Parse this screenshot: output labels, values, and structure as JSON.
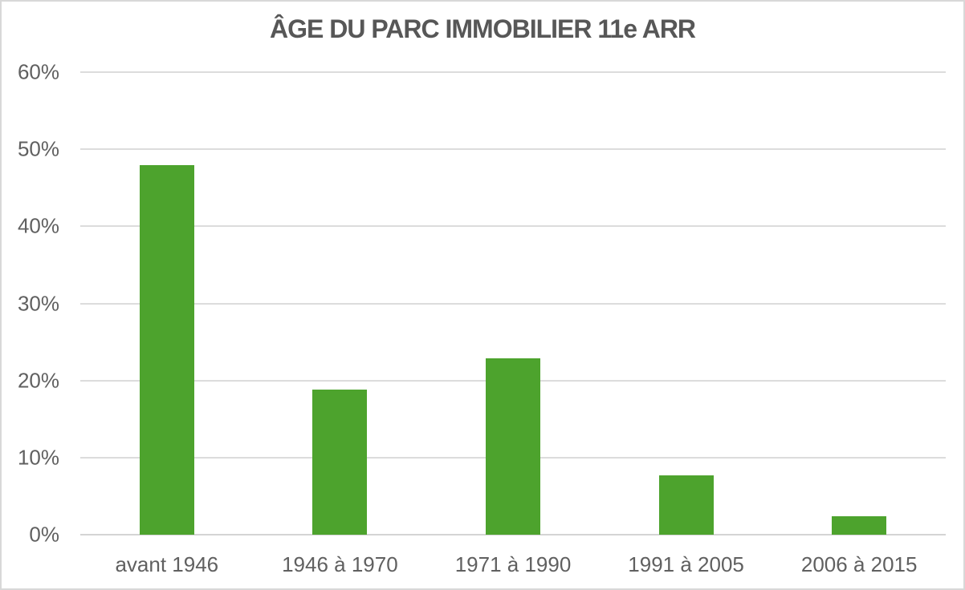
{
  "chart_data": {
    "type": "bar",
    "title": "ÂGE DU PARC IMMOBILIER 11e ARR",
    "categories": [
      "avant 1946",
      "1946 à 1970",
      "1971 à 1990",
      "1991 à 2005",
      "2006 à 2015"
    ],
    "values": [
      47.9,
      18.8,
      22.9,
      7.7,
      2.4
    ],
    "y_tick_labels": [
      "0%",
      "10%",
      "20%",
      "30%",
      "40%",
      "50%",
      "60%"
    ],
    "y_tick_step": 10,
    "ylim": [
      0,
      60
    ],
    "xlabel": "",
    "ylabel": "",
    "grid": true,
    "legend": false,
    "colors": {
      "bar": "#4da32d",
      "gridline": "#dcdcdc",
      "axis_line": "#d4d4d4",
      "title_text": "#575757",
      "label_text": "#606060",
      "border": "#d8d8d8"
    }
  }
}
